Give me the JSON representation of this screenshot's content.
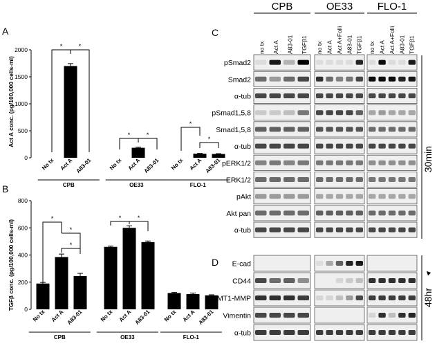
{
  "panels": {
    "a": "A",
    "b": "B",
    "c": "C",
    "d": "D"
  },
  "chart_data": [
    {
      "type": "bar",
      "panel": "A",
      "ylabel": "Act A conc. (pg/100,000 cells-ml)",
      "ylim": [
        0,
        2000
      ],
      "yticks": [
        0,
        500,
        1000,
        1500,
        2000
      ],
      "groups": [
        {
          "name": "CPB",
          "categories": [
            "No tx",
            "Act A",
            "A83-01"
          ],
          "values": [
            0,
            1700,
            0
          ],
          "errors": [
            0,
            45,
            0
          ]
        },
        {
          "name": "OE33",
          "categories": [
            "No tx",
            "Act A",
            "A83-01"
          ],
          "values": [
            0,
            185,
            0
          ],
          "errors": [
            0,
            12,
            0
          ]
        },
        {
          "name": "FLO-1",
          "categories": [
            "No tx",
            "Act A",
            "A83-01"
          ],
          "values": [
            0,
            75,
            70
          ],
          "errors": [
            0,
            6,
            6
          ]
        }
      ],
      "significance": "*"
    },
    {
      "type": "bar",
      "panel": "B",
      "ylabel": "TGFβ conc. (pg/100,000 cells-ml)",
      "ylim": [
        0,
        800
      ],
      "yticks": [
        0,
        200,
        400,
        600,
        800
      ],
      "groups": [
        {
          "name": "CPB",
          "categories": [
            "No tx",
            "Act A",
            "A83-01"
          ],
          "values": [
            190,
            385,
            245
          ],
          "errors": [
            8,
            22,
            20
          ]
        },
        {
          "name": "OE33",
          "categories": [
            "No tx",
            "Act A",
            "A83-01"
          ],
          "values": [
            460,
            600,
            495
          ],
          "errors": [
            6,
            15,
            8
          ]
        },
        {
          "name": "FLO-1",
          "categories": [
            "No tx",
            "Act A",
            "A83-01"
          ],
          "values": [
            120,
            112,
            103
          ],
          "errors": [
            4,
            8,
            4
          ]
        }
      ],
      "significance": "*"
    }
  ],
  "blots": {
    "cell_lines": [
      "CPB",
      "OE33",
      "FLO-1"
    ],
    "lanes": [
      [
        "no tx",
        "Act A",
        "A83-01",
        "TGFβ1"
      ],
      [
        "no tx",
        "Act A",
        "Act A+Folli",
        "A83-01",
        "TGFβ1"
      ],
      [
        "no tx",
        "Act A",
        "Act A+Folli",
        "A83-01",
        "TGFβ1"
      ]
    ],
    "c_proteins": [
      "pSmad2",
      "Smad2",
      "α-tub",
      "pSmad1,5,8",
      "Smad1,5,8",
      "α-tub",
      "pERK1/2",
      "ERK1/2",
      "pAkt",
      "Akt pan",
      "α-tub"
    ],
    "c_time": "30min",
    "d_proteins": [
      "E-cad",
      "CD44",
      "MT1-MMP",
      "Vimentin",
      "α-tub"
    ],
    "d_time": "48hr",
    "arrow": "◄"
  }
}
